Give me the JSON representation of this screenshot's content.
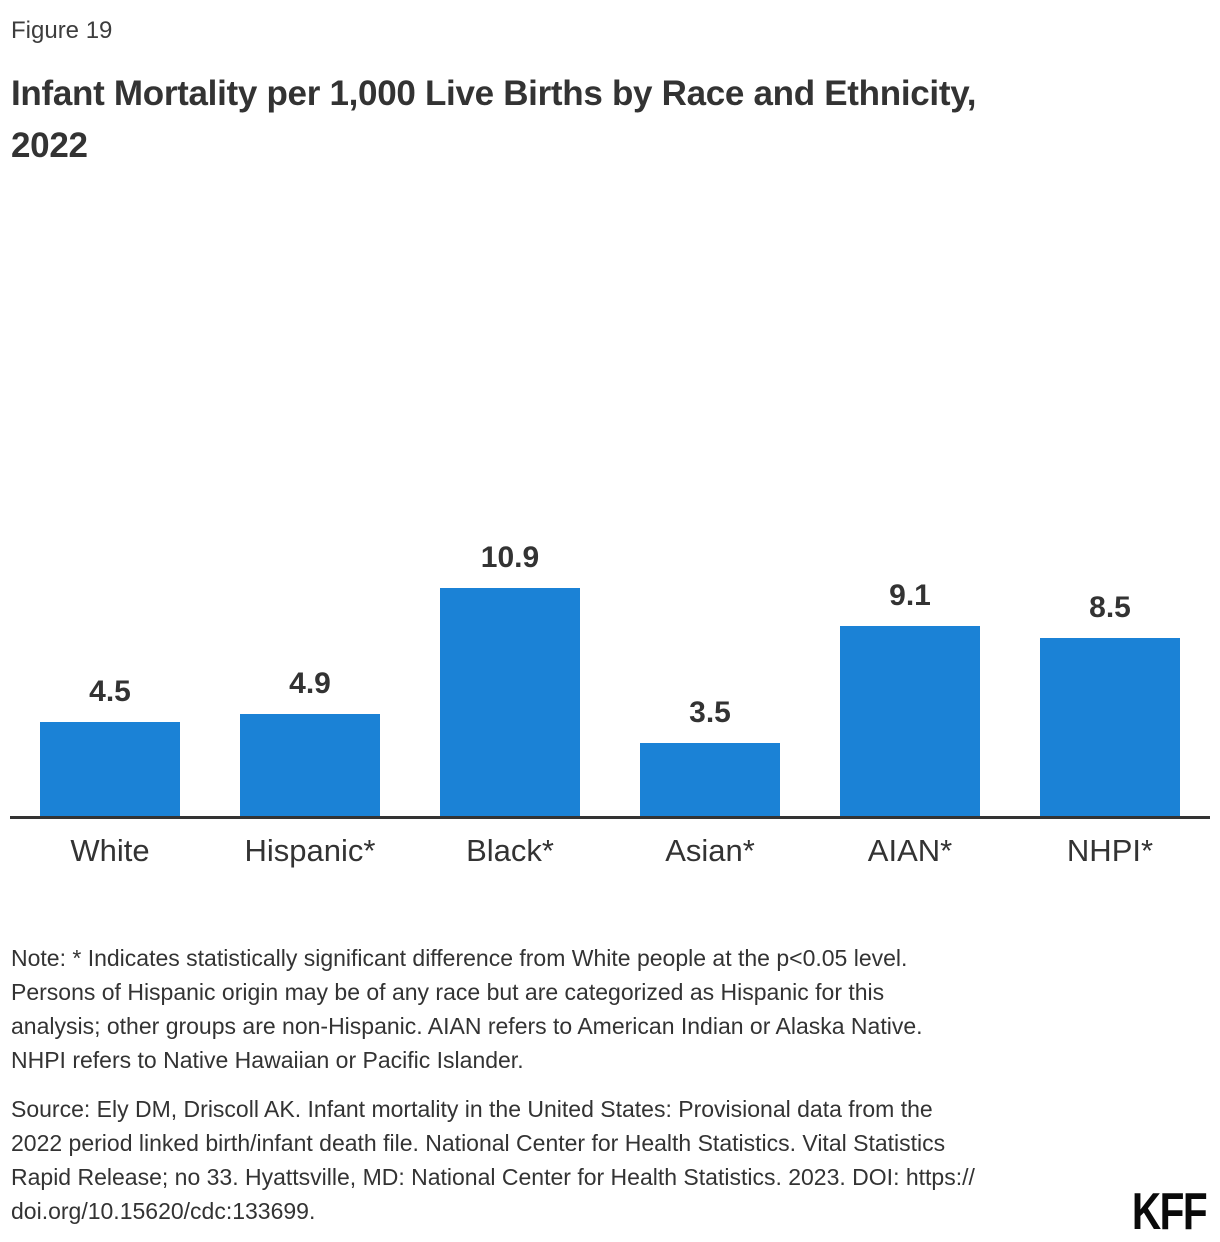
{
  "figure_label": "Figure 19",
  "title_lines": [
    "Infant Mortality per 1,000 Live Births by Race and Ethnicity,",
    "2022"
  ],
  "chart_data": {
    "type": "bar",
    "title": "Infant Mortality per 1,000 Live Births by Race and Ethnicity, 2022",
    "categories": [
      "White",
      "Hispanic*",
      "Black*",
      "Asian*",
      "AIAN*",
      "NHPI*"
    ],
    "values": [
      4.5,
      4.9,
      10.9,
      3.5,
      9.1,
      8.5
    ],
    "data_labels": [
      "4.5",
      "4.9",
      "10.9",
      "3.5",
      "9.1",
      "8.5"
    ],
    "xlabel": "",
    "ylabel": "",
    "ylim": [
      0,
      12
    ],
    "grid": false,
    "legend": "none",
    "y_axis_ticks_visible": false,
    "data_labels_position": "above-bars"
  },
  "note_lines": [
    "Note: * Indicates statistically significant difference from White people at the p<0.05 level.",
    "Persons of Hispanic origin may be of any race but are categorized as Hispanic for this",
    "analysis; other groups are non-Hispanic. AIAN refers to American Indian or Alaska Native.",
    "NHPI refers to Native Hawaiian or Pacific Islander."
  ],
  "source_lines": [
    "Source: Ely DM, Driscoll AK. Infant mortality in the United States: Provisional data from the",
    "2022 period linked birth/infant death file. National Center for Health Statistics. Vital Statistics",
    "Rapid Release; no 33. Hyattsville, MD: National Center for Health Statistics. 2023. DOI: https://",
    "doi.org/10.15620/cdc:133699."
  ],
  "branding": {
    "logo_text": "KFF"
  },
  "colors": {
    "bar": "#1b82d6",
    "text": "#333333",
    "axis": "#333333",
    "logo": "#0a0a0a"
  }
}
